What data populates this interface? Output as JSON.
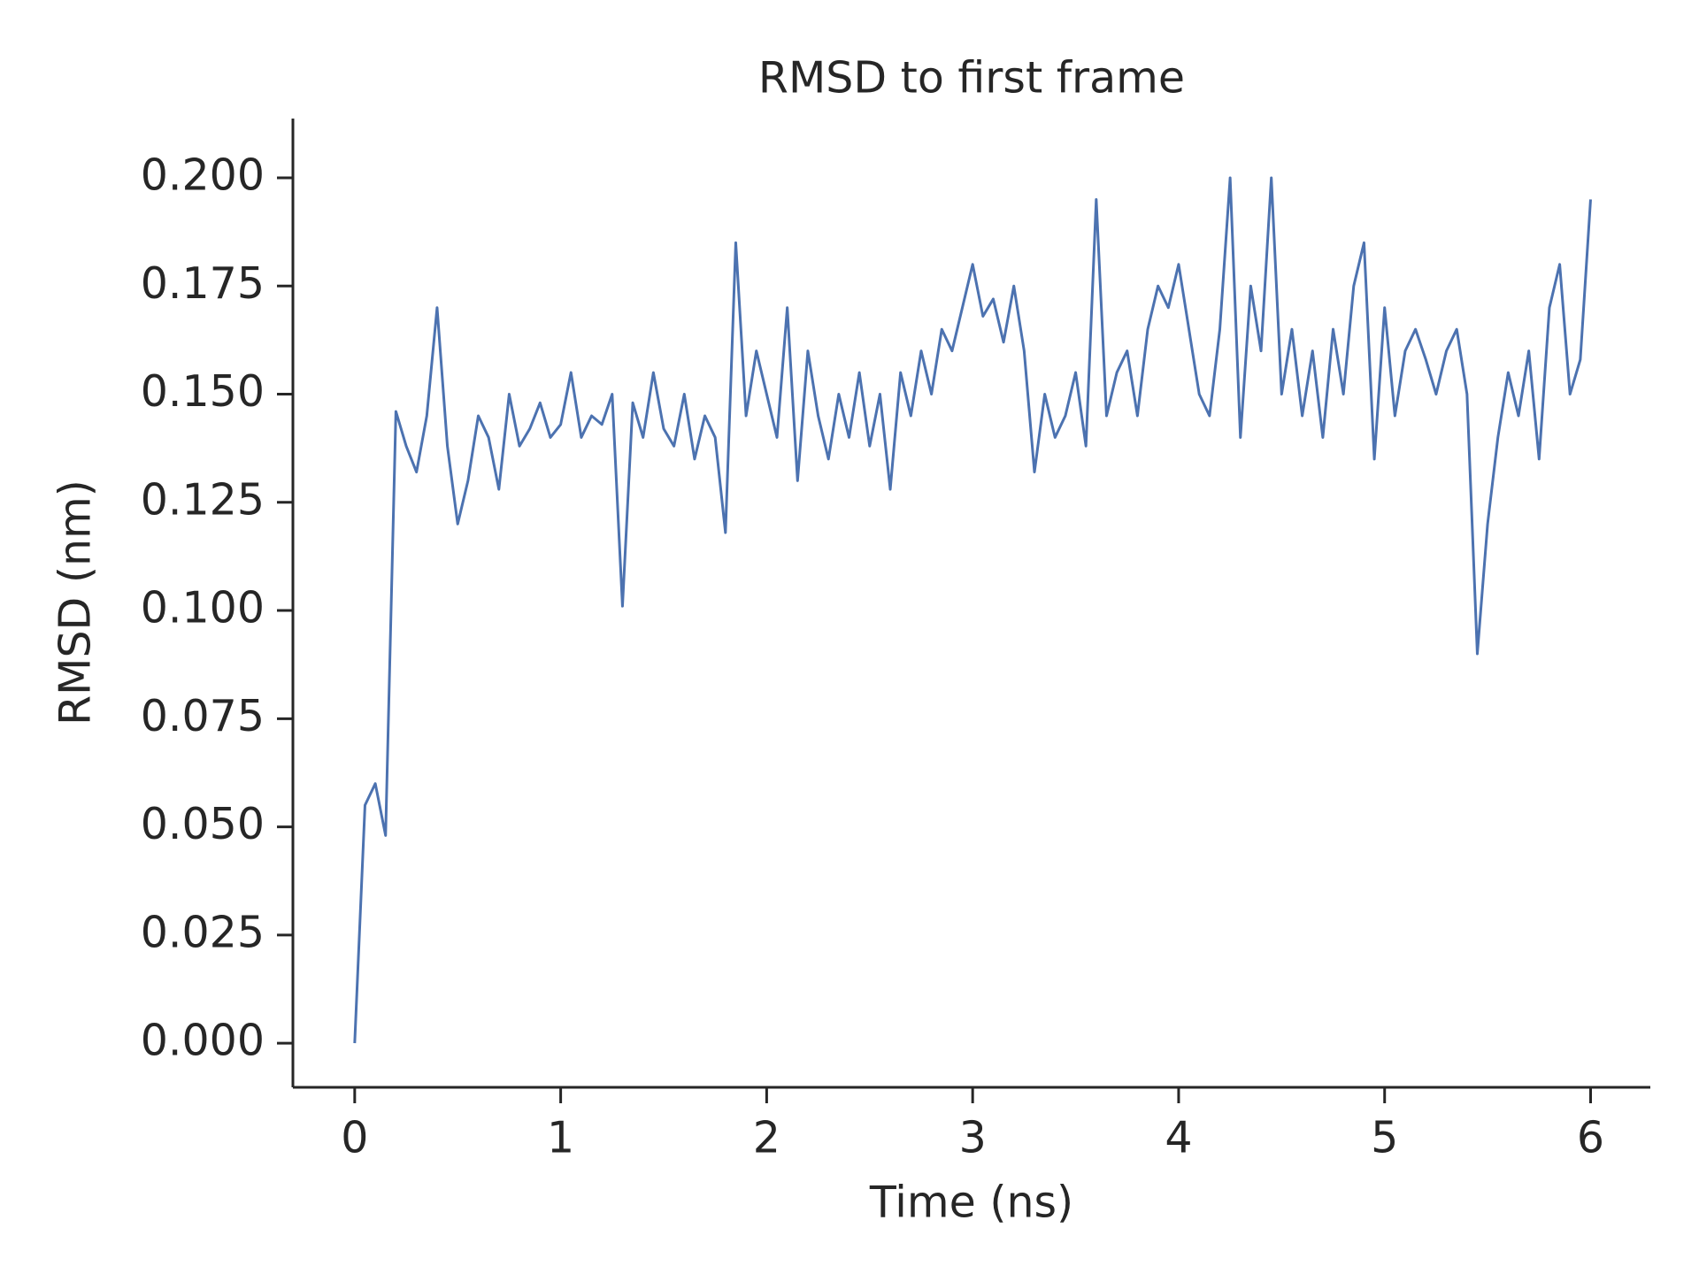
{
  "chart_data": {
    "type": "line",
    "title": "RMSD to first frame",
    "x_label": "Time (ns)",
    "y_label": "RMSD (nm)",
    "x": [
      0,
      0.05,
      0.1,
      0.15,
      0.2,
      0.25,
      0.3,
      0.35,
      0.4,
      0.45,
      0.5,
      0.55,
      0.6,
      0.65,
      0.7,
      0.75,
      0.8,
      0.85,
      0.9,
      0.95,
      1,
      1.05,
      1.1,
      1.15,
      1.2,
      1.25,
      1.3,
      1.35,
      1.4,
      1.45,
      1.5,
      1.55,
      1.6,
      1.65,
      1.7,
      1.75,
      1.8,
      1.85,
      1.9,
      1.95,
      2,
      2.05,
      2.1,
      2.15,
      2.2,
      2.25,
      2.3,
      2.35,
      2.4,
      2.45,
      2.5,
      2.55,
      2.6,
      2.65,
      2.7,
      2.75,
      2.8,
      2.85,
      2.9,
      2.95,
      3,
      3.05,
      3.1,
      3.15,
      3.2,
      3.25,
      3.3,
      3.35,
      3.4,
      3.45,
      3.5,
      3.55,
      3.6,
      3.65,
      3.7,
      3.75,
      3.8,
      3.85,
      3.9,
      3.95,
      4,
      4.05,
      4.1,
      4.15,
      4.2,
      4.25,
      4.3,
      4.35,
      4.4,
      4.45,
      4.5,
      4.55,
      4.6,
      4.65,
      4.7,
      4.75,
      4.8,
      4.85,
      4.9,
      4.95,
      5,
      5.05,
      5.1,
      5.15,
      5.2,
      5.25,
      5.3,
      5.35,
      5.4,
      5.45,
      5.5,
      5.55,
      5.6,
      5.65,
      5.7,
      5.75,
      5.8,
      5.85,
      5.9,
      5.95,
      6
    ],
    "values": [
      0.0,
      0.055,
      0.06,
      0.048,
      0.146,
      0.138,
      0.132,
      0.145,
      0.17,
      0.138,
      0.12,
      0.13,
      0.145,
      0.14,
      0.128,
      0.15,
      0.138,
      0.142,
      0.148,
      0.14,
      0.143,
      0.155,
      0.14,
      0.145,
      0.143,
      0.15,
      0.101,
      0.148,
      0.14,
      0.155,
      0.142,
      0.138,
      0.15,
      0.135,
      0.145,
      0.14,
      0.118,
      0.185,
      0.145,
      0.16,
      0.15,
      0.14,
      0.17,
      0.13,
      0.16,
      0.145,
      0.135,
      0.15,
      0.14,
      0.155,
      0.138,
      0.15,
      0.128,
      0.155,
      0.145,
      0.16,
      0.15,
      0.165,
      0.16,
      0.17,
      0.18,
      0.168,
      0.172,
      0.162,
      0.175,
      0.16,
      0.132,
      0.15,
      0.14,
      0.145,
      0.155,
      0.138,
      0.195,
      0.145,
      0.155,
      0.16,
      0.145,
      0.165,
      0.175,
      0.17,
      0.18,
      0.165,
      0.15,
      0.145,
      0.165,
      0.2,
      0.14,
      0.175,
      0.16,
      0.2,
      0.15,
      0.165,
      0.145,
      0.16,
      0.14,
      0.165,
      0.15,
      0.175,
      0.185,
      0.135,
      0.17,
      0.145,
      0.16,
      0.165,
      0.158,
      0.15,
      0.16,
      0.165,
      0.15,
      0.09,
      0.12,
      0.14,
      0.155,
      0.145,
      0.16,
      0.135,
      0.17,
      0.18,
      0.15,
      0.158,
      0.195
    ],
    "color": "#4c72b0",
    "xlim": [
      -0.3,
      6.29
    ],
    "xticks": [
      0,
      1,
      2,
      3,
      4,
      5,
      6
    ],
    "ylim": [
      -0.0102,
      0.2137
    ],
    "yticks": [
      {
        "value": 0,
        "label": "0.000"
      },
      {
        "value": 0.025,
        "label": "0.025"
      },
      {
        "value": 0.05,
        "label": "0.050"
      },
      {
        "value": 0.075,
        "label": "0.075"
      },
      {
        "value": 0.1,
        "label": "0.100"
      },
      {
        "value": 0.125,
        "label": "0.125"
      },
      {
        "value": 0.15,
        "label": "0.150"
      },
      {
        "value": 0.175,
        "label": "0.175"
      },
      {
        "value": 0.2,
        "label": "0.200"
      }
    ],
    "grid": false
  }
}
